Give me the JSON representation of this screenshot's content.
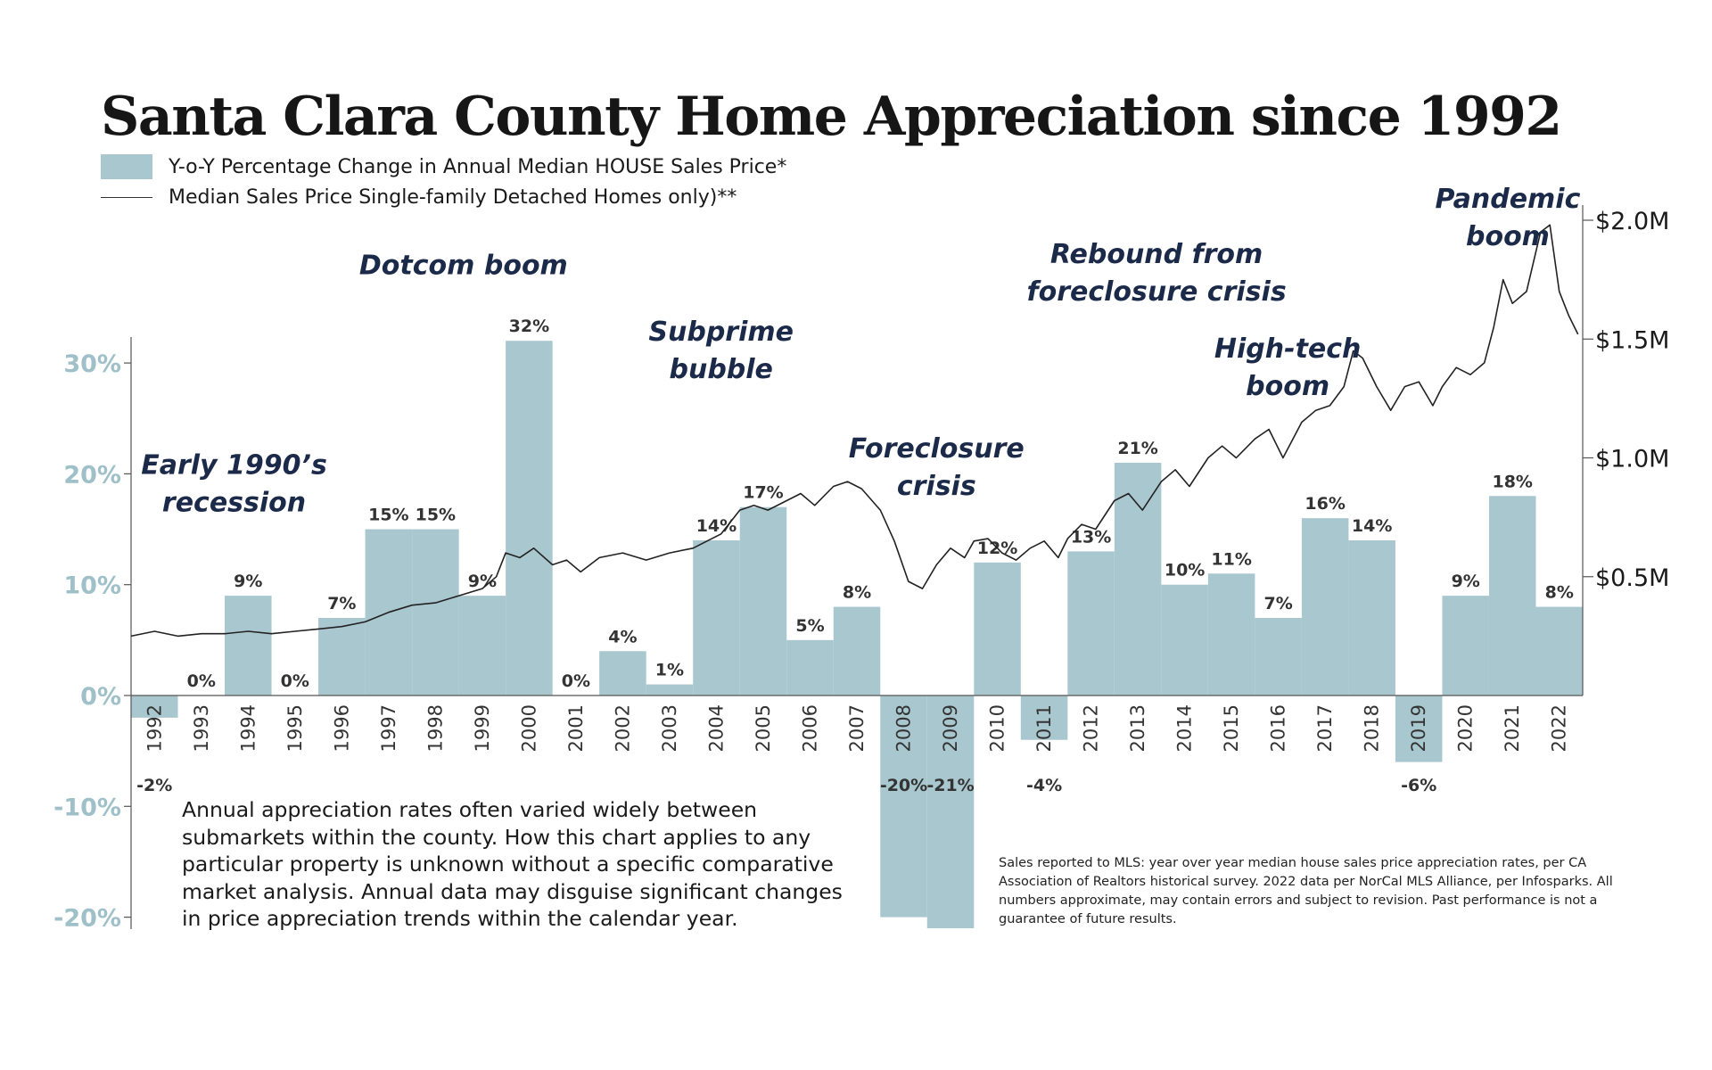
{
  "title": "Santa Clara County Home Appreciation since 1992",
  "legend": {
    "bars": "Y-o-Y Percentage Change in Annual Median HOUSE Sales Price*",
    "line": "Median Sales Price Single-family Detached Homes only)**"
  },
  "colors": {
    "bar": "#a9c7cf",
    "left_axis": "#9fc0c9",
    "annotation": "#1c2a4a",
    "line": "#222222"
  },
  "notes": {
    "left": "Annual appreciation rates often varied widely between submarkets within the county. How this chart applies to any particular property is unknown without a specific comparative market analysis. Annual data may disguise significant changes in price appreciation trends within the calendar year.",
    "right": "Sales reported to MLS: year over year median house sales price appreciation rates, per CA Association of Realtors historical survey. 2022 data per NorCal MLS Alliance, per Infosparks. All numbers approximate, may contain errors and subject to revision. Past performance is not a guarantee of future results."
  },
  "chart_data": {
    "type": "bar",
    "title": "Santa Clara County Home Appreciation since 1992",
    "categories": [
      "1992",
      "1993",
      "1994",
      "1995",
      "1996",
      "1997",
      "1998",
      "1999",
      "2000",
      "2001",
      "2002",
      "2003",
      "2004",
      "2005",
      "2006",
      "2007",
      "2008",
      "2009",
      "2010",
      "2011",
      "2012",
      "2013",
      "2014",
      "2015",
      "2016",
      "2017",
      "2018",
      "2019",
      "2020",
      "2021",
      "2022"
    ],
    "series": [
      {
        "name": "Y-o-Y Percentage Change in Annual Median HOUSE Sales Price*",
        "axis": "left",
        "unit": "%",
        "values": [
          -2,
          0,
          9,
          0,
          7,
          15,
          15,
          9,
          32,
          0,
          4,
          1,
          14,
          17,
          5,
          8,
          -20,
          -21,
          12,
          -4,
          13,
          21,
          10,
          11,
          7,
          16,
          14,
          -6,
          9,
          18,
          8
        ],
        "labels": [
          "-2%",
          "0%",
          "9%",
          "0%",
          "7%",
          "15%",
          "15%",
          "9%",
          "32%",
          "0%",
          "4%",
          "1%",
          "14%",
          "17%",
          "5%",
          "8%",
          "-20%",
          "-21%",
          "12%",
          "-4%",
          "13%",
          "21%",
          "10%",
          "11%",
          "7%",
          "16%",
          "14%",
          "-6%",
          "9%",
          "18%",
          "8%"
        ]
      },
      {
        "name": "Median Sales Price Single-family Detached Homes only)**",
        "axis": "right",
        "type": "line",
        "unit": "$M",
        "start": 1992,
        "end": 2022.9,
        "points": [
          [
            1992.0,
            0.25
          ],
          [
            1992.5,
            0.27
          ],
          [
            1993.0,
            0.25
          ],
          [
            1993.5,
            0.26
          ],
          [
            1994.0,
            0.26
          ],
          [
            1994.5,
            0.27
          ],
          [
            1995.0,
            0.26
          ],
          [
            1995.5,
            0.27
          ],
          [
            1996.0,
            0.28
          ],
          [
            1996.5,
            0.29
          ],
          [
            1997.0,
            0.31
          ],
          [
            1997.5,
            0.35
          ],
          [
            1998.0,
            0.38
          ],
          [
            1998.5,
            0.39
          ],
          [
            1999.0,
            0.42
          ],
          [
            1999.5,
            0.45
          ],
          [
            1999.8,
            0.5
          ],
          [
            2000.0,
            0.6
          ],
          [
            2000.3,
            0.58
          ],
          [
            2000.6,
            0.62
          ],
          [
            2001.0,
            0.55
          ],
          [
            2001.3,
            0.57
          ],
          [
            2001.6,
            0.52
          ],
          [
            2002.0,
            0.58
          ],
          [
            2002.5,
            0.6
          ],
          [
            2003.0,
            0.57
          ],
          [
            2003.5,
            0.6
          ],
          [
            2004.0,
            0.62
          ],
          [
            2004.3,
            0.65
          ],
          [
            2004.6,
            0.68
          ],
          [
            2005.0,
            0.78
          ],
          [
            2005.3,
            0.8
          ],
          [
            2005.6,
            0.78
          ],
          [
            2006.0,
            0.82
          ],
          [
            2006.3,
            0.85
          ],
          [
            2006.6,
            0.8
          ],
          [
            2007.0,
            0.88
          ],
          [
            2007.3,
            0.9
          ],
          [
            2007.6,
            0.87
          ],
          [
            2008.0,
            0.78
          ],
          [
            2008.3,
            0.65
          ],
          [
            2008.6,
            0.48
          ],
          [
            2008.9,
            0.45
          ],
          [
            2009.2,
            0.55
          ],
          [
            2009.5,
            0.62
          ],
          [
            2009.8,
            0.58
          ],
          [
            2010.0,
            0.65
          ],
          [
            2010.3,
            0.66
          ],
          [
            2010.6,
            0.6
          ],
          [
            2010.9,
            0.57
          ],
          [
            2011.2,
            0.62
          ],
          [
            2011.5,
            0.65
          ],
          [
            2011.8,
            0.58
          ],
          [
            2012.0,
            0.66
          ],
          [
            2012.3,
            0.72
          ],
          [
            2012.6,
            0.7
          ],
          [
            2013.0,
            0.82
          ],
          [
            2013.3,
            0.85
          ],
          [
            2013.6,
            0.78
          ],
          [
            2014.0,
            0.9
          ],
          [
            2014.3,
            0.95
          ],
          [
            2014.6,
            0.88
          ],
          [
            2015.0,
            1.0
          ],
          [
            2015.3,
            1.05
          ],
          [
            2015.6,
            1.0
          ],
          [
            2016.0,
            1.08
          ],
          [
            2016.3,
            1.12
          ],
          [
            2016.6,
            1.0
          ],
          [
            2017.0,
            1.15
          ],
          [
            2017.3,
            1.2
          ],
          [
            2017.6,
            1.22
          ],
          [
            2017.9,
            1.3
          ],
          [
            2018.1,
            1.45
          ],
          [
            2018.3,
            1.42
          ],
          [
            2018.6,
            1.3
          ],
          [
            2018.9,
            1.2
          ],
          [
            2019.2,
            1.3
          ],
          [
            2019.5,
            1.32
          ],
          [
            2019.8,
            1.22
          ],
          [
            2020.0,
            1.3
          ],
          [
            2020.3,
            1.38
          ],
          [
            2020.6,
            1.35
          ],
          [
            2020.9,
            1.4
          ],
          [
            2021.1,
            1.55
          ],
          [
            2021.3,
            1.75
          ],
          [
            2021.5,
            1.65
          ],
          [
            2021.8,
            1.7
          ],
          [
            2022.1,
            1.95
          ],
          [
            2022.3,
            1.98
          ],
          [
            2022.5,
            1.7
          ],
          [
            2022.7,
            1.6
          ],
          [
            2022.9,
            1.52
          ]
        ]
      }
    ],
    "left_axis": {
      "ticks": [
        "30%",
        "20%",
        "10%",
        "0%",
        "-10%",
        "-20%"
      ],
      "values": [
        30,
        20,
        10,
        0,
        -10,
        -20
      ]
    },
    "right_axis": {
      "ticks": [
        "$2.0M",
        "$1.5M",
        "$1.0M",
        "$0.5M"
      ],
      "values": [
        2.0,
        1.5,
        1.0,
        0.5
      ]
    },
    "annotations": [
      {
        "lines": [
          "Early 1990’s",
          "recession"
        ],
        "year": 1994.2,
        "level": 20
      },
      {
        "lines": [
          "Dotcom boom"
        ],
        "year": 1999.1,
        "level": 38
      },
      {
        "lines": [
          "Subprime",
          "bubble"
        ],
        "year": 2004.6,
        "level": 32
      },
      {
        "lines": [
          "Foreclosure",
          "crisis"
        ],
        "year": 2009.2,
        "level": 21.5
      },
      {
        "lines": [
          "Rebound from",
          "foreclosure crisis"
        ],
        "year": 2013.9,
        "level": 39
      },
      {
        "lines": [
          "High-tech",
          "boom"
        ],
        "year": 2016.7,
        "level": 30.5
      },
      {
        "lines": [
          "Pandemic",
          "boom"
        ],
        "year": 2021.4,
        "level": 44
      }
    ]
  }
}
